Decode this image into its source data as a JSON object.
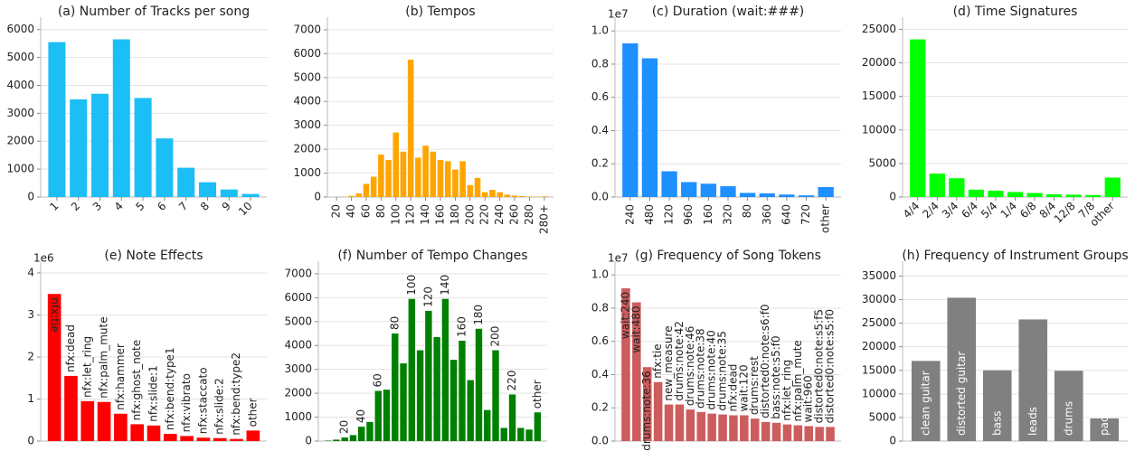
{
  "chart_data": [
    {
      "type": "bar",
      "title": "(a) Number of Tracks per song",
      "color": "#1cbff5",
      "grid": true,
      "categories": [
        "1",
        "2",
        "3",
        "4",
        "5",
        "6",
        "7",
        "8",
        "9",
        "10"
      ],
      "values": [
        5550,
        3500,
        3700,
        5650,
        3550,
        2100,
        1050,
        530,
        270,
        110
      ],
      "ylim": [
        0,
        6250
      ],
      "yticks": [
        0,
        1000,
        2000,
        3000,
        4000,
        5000,
        6000
      ]
    },
    {
      "type": "bar",
      "title": "(b) Tempos",
      "color": "#ffa500",
      "grid": true,
      "categories": [
        "20",
        null,
        "40",
        null,
        "60",
        null,
        "80",
        null,
        "100",
        null,
        "120",
        null,
        "140",
        null,
        "160",
        null,
        "180",
        null,
        "200",
        null,
        "220",
        null,
        "240",
        null,
        "260",
        null,
        "280",
        null,
        "280+"
      ],
      "values": [
        5,
        10,
        50,
        150,
        550,
        850,
        1780,
        1550,
        2700,
        1900,
        5750,
        1650,
        2150,
        1900,
        1550,
        1500,
        1150,
        1500,
        500,
        800,
        200,
        300,
        200,
        100,
        60,
        40,
        20,
        10,
        30
      ],
      "ylim": [
        0,
        7300
      ],
      "yticks": [
        0,
        1000,
        2000,
        3000,
        4000,
        5000,
        6000,
        7000
      ]
    },
    {
      "type": "bar",
      "title": "(c) Duration (wait:###)",
      "color": "#1e90ff",
      "grid": true,
      "y_offset_label": "1e7",
      "categories": [
        "240",
        "480",
        "120",
        "960",
        "160",
        "320",
        "80",
        "360",
        "640",
        "720",
        "other"
      ],
      "values": [
        0.925,
        0.835,
        0.155,
        0.09,
        0.08,
        0.065,
        0.025,
        0.022,
        0.015,
        0.01,
        0.06
      ],
      "ylim": [
        0,
        1.05
      ],
      "yticks": [
        {
          "value": 0,
          "label": "0.0"
        },
        0.2,
        0.4,
        0.6,
        0.8,
        {
          "value": 1,
          "label": "1.0"
        }
      ]
    },
    {
      "type": "bar",
      "title": "(d) Time Signatures",
      "color": "#00ff00",
      "grid": true,
      "categories": [
        "4/4",
        "2/4",
        "3/4",
        "6/4",
        "5/4",
        "1/4",
        "6/8",
        "8/4",
        "12/8",
        "7/8",
        "other"
      ],
      "values": [
        23500,
        3500,
        2800,
        1100,
        950,
        750,
        600,
        400,
        350,
        300,
        2900
      ],
      "ylim": [
        0,
        26000
      ],
      "yticks": [
        0,
        5000,
        10000,
        15000,
        20000,
        25000
      ]
    },
    {
      "type": "bar",
      "title": "(e) Note Effects",
      "color": "#ff0000",
      "grid": true,
      "y_offset_label": "1e6",
      "categories": [
        "nfx:tie",
        "nfx:dead",
        "nfx:let_ring",
        "nfx:palm_mute",
        "nfx:hammer",
        "nfx:ghost_note",
        "nfx:slide:1",
        "nfx:bend:type1",
        "nfx:vibrato",
        "nfx:staccato",
        "nfx:slide:2",
        "nfx:bend:type2",
        "other"
      ],
      "values": [
        3.5,
        1.55,
        0.95,
        0.93,
        0.65,
        0.4,
        0.37,
        0.17,
        0.12,
        0.08,
        0.07,
        0.05,
        0.25
      ],
      "ylim": [
        0,
        4.15
      ],
      "yticks": [
        0,
        1,
        2,
        3,
        4
      ]
    },
    {
      "type": "bar",
      "title": "(f) Number of Tempo Changes",
      "color": "#008000",
      "grid": true,
      "categories": [
        null,
        null,
        "20",
        null,
        "40",
        null,
        "60",
        null,
        "80",
        null,
        "100",
        null,
        "120",
        null,
        "140",
        null,
        "160",
        null,
        "180",
        null,
        "200",
        null,
        "220",
        null,
        null,
        "other"
      ],
      "values": [
        20,
        60,
        150,
        250,
        600,
        800,
        2100,
        2150,
        4500,
        3250,
        5950,
        3800,
        5450,
        4350,
        5950,
        3400,
        4200,
        2550,
        4700,
        1300,
        3800,
        550,
        1950,
        550,
        480,
        1200
      ],
      "ylim": [
        0,
        7300
      ],
      "yticks": [
        0,
        1000,
        2000,
        3000,
        4000,
        5000,
        6000,
        7000
      ]
    },
    {
      "type": "bar",
      "title": "(g) Frequency of Song Tokens",
      "color": "#cd5c5c",
      "grid": true,
      "y_offset_label": "1e7",
      "categories": [
        "wait:240",
        "wait:480",
        "drums:note:36",
        "nfx:tie",
        "new_measure",
        "drums:note:42",
        "drums:note:46",
        "drums:note:38",
        "drums:note:40",
        "drums:note:35",
        "nfx:dead",
        "wait:120",
        "drums:rest",
        "distorted0:note:s6:f0",
        "bass:note:s5:f0",
        "nfx:let_ring",
        "nfx:palm_mute",
        "wait:960",
        "distorted0:note:s5:f5",
        "distorted0:note:s5:f0"
      ],
      "values": [
        0.92,
        0.835,
        0.445,
        0.355,
        0.22,
        0.22,
        0.19,
        0.175,
        0.165,
        0.16,
        0.155,
        0.155,
        0.135,
        0.115,
        0.11,
        0.1,
        0.095,
        0.09,
        0.085,
        0.085
      ],
      "ylim": [
        0,
        1.05
      ],
      "yticks": [
        {
          "value": 0,
          "label": "0.0"
        },
        0.2,
        0.4,
        0.6,
        0.8,
        {
          "value": 1,
          "label": "1.0"
        }
      ]
    },
    {
      "type": "bar",
      "title": "(h) Frequency of Instrument Groups",
      "color": "#808080",
      "grid": true,
      "categories": [
        "clean guitar",
        "distorted guitar",
        "bass",
        "leads",
        "drums",
        "pads"
      ],
      "values": [
        17000,
        30400,
        15000,
        25800,
        14900,
        4800
      ],
      "ylim": [
        0,
        37000
      ],
      "yticks": [
        0,
        5000,
        10000,
        15000,
        20000,
        25000,
        30000,
        35000
      ]
    }
  ]
}
